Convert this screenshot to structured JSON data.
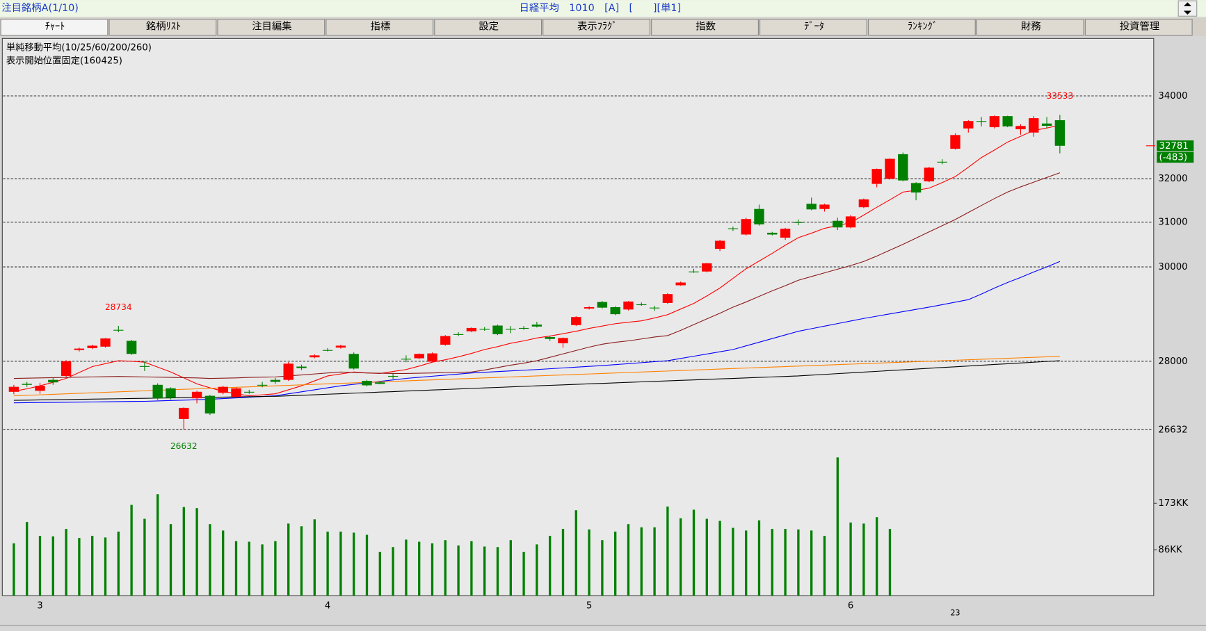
{
  "header": {
    "left": "注目銘柄A(1/10)",
    "center": "日経平均　1010　[A]　[　　][単1]"
  },
  "tabs": [
    "ﾁｬｰﾄ",
    "銘柄ﾘｽﾄ",
    "注目編集",
    "指標",
    "設定",
    "表示ﾌﾗｸﾞ",
    "指数",
    "ﾃﾞｰﾀ",
    "ﾗﾝｷﾝｸﾞ",
    "財務",
    "投資管理"
  ],
  "chart_data": {
    "type": "candlestick",
    "title": "単純移動平均(10/25/60/200/260)",
    "subtitle": "表示開始位置固定(160425)",
    "log": true,
    "grid": true,
    "up_color": "#ff0000",
    "down_color": "#008000",
    "volume_color": "#008000",
    "ylim": [
      26320,
      35420
    ],
    "yticks": [
      34000,
      32000,
      31000,
      30000,
      28000,
      26632
    ],
    "volume_ylim": [
      0,
      265
    ],
    "volume_yticks": [
      {
        "value": 173,
        "label": "173KK"
      },
      {
        "value": 86,
        "label": "86KK"
      }
    ],
    "categories": [
      null,
      null,
      "3",
      null,
      null,
      null,
      null,
      null,
      null,
      null,
      null,
      null,
      null,
      null,
      null,
      null,
      null,
      null,
      null,
      null,
      null,
      null,
      null,
      null,
      "4",
      null,
      null,
      null,
      null,
      null,
      null,
      null,
      null,
      null,
      null,
      null,
      null,
      null,
      null,
      null,
      null,
      null,
      null,
      null,
      "5",
      null,
      null,
      null,
      null,
      null,
      null,
      null,
      null,
      null,
      null,
      null,
      null,
      null,
      null,
      null,
      null,
      null,
      null,
      null,
      "6",
      null,
      null,
      null,
      null,
      null,
      null,
      null,
      null,
      null,
      null,
      null,
      null,
      null,
      null,
      null,
      null
    ],
    "sub_categories": [
      null,
      null,
      null,
      null,
      null,
      null,
      null,
      null,
      null,
      null,
      null,
      null,
      null,
      null,
      null,
      null,
      null,
      null,
      null,
      null,
      null,
      null,
      null,
      null,
      null,
      null,
      null,
      null,
      null,
      null,
      null,
      null,
      null,
      null,
      null,
      null,
      null,
      null,
      null,
      null,
      null,
      null,
      null,
      null,
      null,
      null,
      null,
      null,
      null,
      null,
      null,
      null,
      null,
      null,
      null,
      null,
      null,
      null,
      null,
      null,
      null,
      null,
      null,
      null,
      null,
      null,
      null,
      null,
      null,
      null,
      null,
      null,
      "23",
      null,
      null,
      null,
      null,
      null,
      null,
      null,
      null
    ],
    "open": [
      27380,
      27540,
      27400,
      27620,
      27700,
      28230,
      28270,
      28300,
      28650,
      28420,
      27900,
      27520,
      27450,
      26840,
      27250,
      27300,
      27360,
      27280,
      27380,
      27520,
      27620,
      27620,
      27890,
      28080,
      28230,
      28280,
      28150,
      27600,
      27570,
      27700,
      28050,
      28060,
      27990,
      28340,
      28560,
      28620,
      28670,
      28740,
      28670,
      28690,
      28760,
      28500,
      28370,
      28750,
      29100,
      29240,
      29130,
      29080,
      29190,
      29120,
      29220,
      29600,
      29900,
      29900,
      30400,
      30860,
      30720,
      31300,
      30760,
      30650,
      31000,
      31420,
      31300,
      31030,
      30880,
      31340,
      31880,
      32000,
      32580,
      31900,
      31940,
      32400,
      32710,
      33200,
      33380,
      33230,
      33500,
      33180,
      33100,
      33320,
      33400
    ],
    "high": [
      27520,
      27580,
      27560,
      27660,
      28020,
      28280,
      28340,
      28480,
      28734,
      28440,
      28000,
      27550,
      27470,
      27070,
      27400,
      27320,
      27500,
      27470,
      27420,
      27580,
      27660,
      27980,
      27930,
      28140,
      28270,
      28340,
      28180,
      27620,
      27600,
      27760,
      28120,
      28160,
      28180,
      28540,
      28600,
      28700,
      28710,
      28760,
      28730,
      28730,
      28820,
      28520,
      28490,
      28940,
      29150,
      29260,
      29150,
      29260,
      29230,
      29160,
      29430,
      29680,
      29960,
      30090,
      30600,
      30900,
      31100,
      31400,
      30780,
      30870,
      31060,
      31560,
      31420,
      31100,
      31160,
      31540,
      32240,
      32480,
      32620,
      31920,
      32280,
      32460,
      33080,
      33400,
      33480,
      33520,
      33510,
      33300,
      33500,
      33480,
      33533
    ],
    "low": [
      27330,
      27480,
      27340,
      27520,
      27680,
      28200,
      28250,
      28280,
      28600,
      28130,
      27800,
      27220,
      27230,
      26632,
      27150,
      26920,
      27330,
      27260,
      27340,
      27470,
      27540,
      27600,
      27820,
      28060,
      28200,
      28260,
      27830,
      27490,
      27530,
      27640,
      27980,
      28040,
      27980,
      28320,
      28520,
      28600,
      28630,
      28540,
      28580,
      28650,
      28700,
      28420,
      28280,
      28730,
      29080,
      29100,
      28960,
      29060,
      29160,
      29050,
      29200,
      29590,
      29870,
      29880,
      30350,
      30800,
      30700,
      30920,
      30700,
      30600,
      30930,
      31270,
      31240,
      30820,
      30860,
      31320,
      31800,
      31980,
      31940,
      31500,
      31920,
      32340,
      32690,
      33100,
      33250,
      33200,
      33230,
      33050,
      33000,
      33200,
      32600
    ],
    "close": [
      27480,
      27520,
      27500,
      27570,
      28000,
      28260,
      28320,
      28470,
      28650,
      28150,
      27900,
      27250,
      27260,
      27060,
      27380,
      26950,
      27480,
      27450,
      27380,
      27520,
      27580,
      27950,
      27860,
      28120,
      28230,
      28320,
      27850,
      27510,
      27540,
      27700,
      28050,
      28150,
      28160,
      28520,
      28560,
      28690,
      28670,
      28560,
      28670,
      28690,
      28720,
      28460,
      28480,
      28920,
      29130,
      29120,
      28980,
      29250,
      29190,
      29120,
      29410,
      29660,
      29900,
      30080,
      30580,
      30860,
      31070,
      30950,
      30720,
      30850,
      31000,
      31290,
      31400,
      30880,
      31130,
      31520,
      32230,
      32470,
      31960,
      31680,
      32260,
      32400,
      33040,
      33380,
      33380,
      33500,
      33250,
      33260,
      33450,
      33264,
      32781
    ],
    "volume": [
      98,
      138,
      112,
      111,
      125,
      108,
      112,
      109,
      120,
      170,
      144,
      190,
      134,
      166,
      164,
      134,
      122,
      102,
      101,
      96,
      102,
      135,
      130,
      143,
      120,
      120,
      118,
      114,
      82,
      91,
      105,
      101,
      98,
      104,
      94,
      102,
      92,
      91,
      104,
      82,
      96,
      112,
      125,
      160,
      124,
      104,
      120,
      134,
      128,
      128,
      167,
      145,
      161,
      144,
      140,
      127,
      122,
      141,
      125,
      125,
      124,
      122,
      112,
      259,
      137,
      135,
      147,
      125,
      null,
      null,
      null,
      null,
      null,
      null,
      null,
      null,
      null,
      null,
      null,
      null,
      null
    ],
    "moving_averages": [
      {
        "color": "#ff0000",
        "values": [
          27390,
          27440,
          27500,
          27570,
          27650,
          27770,
          27890,
          27950,
          28010,
          28000,
          27980,
          27880,
          27780,
          27660,
          27540,
          27460,
          27390,
          27340,
          27300,
          27320,
          27340,
          27420,
          27500,
          27600,
          27700,
          27740,
          27780,
          27760,
          27750,
          27790,
          27830,
          27900,
          27980,
          28030,
          28090,
          28160,
          28240,
          28300,
          28370,
          28420,
          28480,
          28520,
          28570,
          28620,
          28680,
          28730,
          28780,
          28810,
          28840,
          28900,
          28970,
          29090,
          29210,
          29370,
          29540,
          29750,
          29960,
          30130,
          30300,
          30480,
          30650,
          30750,
          30860,
          30920,
          30990,
          31160,
          31340,
          31510,
          31690,
          31730,
          31780,
          31910,
          32050,
          32270,
          32500,
          32680,
          32870,
          33010,
          33150,
          33210,
          33280
        ]
      },
      {
        "color": "#8b1a1a",
        "values": [
          27650,
          27655,
          27660,
          27665,
          27670,
          27675,
          27680,
          27685,
          27690,
          27685,
          27680,
          27675,
          27670,
          27665,
          27660,
          27650,
          27655,
          27660,
          27670,
          27675,
          27680,
          27700,
          27720,
          27740,
          27760,
          27780,
          27770,
          27760,
          27755,
          27750,
          27750,
          27755,
          27760,
          27770,
          27775,
          27780,
          27820,
          27870,
          27920,
          27960,
          28010,
          28080,
          28150,
          28220,
          28290,
          28350,
          28390,
          28420,
          28460,
          28500,
          28530,
          28640,
          28760,
          28880,
          29000,
          29130,
          29240,
          29360,
          29480,
          29590,
          29710,
          29790,
          29870,
          29950,
          30030,
          30120,
          30240,
          30370,
          30500,
          30640,
          30780,
          30920,
          31060,
          31220,
          31380,
          31540,
          31690,
          31810,
          31920,
          32030,
          32140
        ]
      },
      {
        "color": "#0000ff",
        "values": [
          27160,
          27163,
          27166,
          27169,
          27172,
          27175,
          27178,
          27181,
          27184,
          27187,
          27190,
          27198,
          27206,
          27214,
          27222,
          27230,
          27244,
          27258,
          27272,
          27286,
          27300,
          27340,
          27380,
          27420,
          27460,
          27500,
          27530,
          27560,
          27590,
          27620,
          27650,
          27672,
          27694,
          27716,
          27738,
          27760,
          27774,
          27788,
          27802,
          27816,
          27830,
          27846,
          27862,
          27878,
          27894,
          27910,
          27930,
          27950,
          27970,
          27990,
          28010,
          28056,
          28102,
          28148,
          28194,
          28240,
          28316,
          28392,
          28468,
          28544,
          28620,
          28674,
          28728,
          28782,
          28836,
          28890,
          28938,
          28986,
          29034,
          29082,
          29130,
          29183,
          29237,
          29290,
          29410,
          29540,
          29660,
          29770,
          29890,
          30000,
          30120
        ]
      },
      {
        "color": "#ff8000",
        "values": [
          27300,
          27310,
          27320,
          27330,
          27340,
          27350,
          27360,
          27370,
          27380,
          27390,
          27400,
          27410,
          27420,
          27430,
          27440,
          27450,
          27460,
          27470,
          27480,
          27490,
          27500,
          27510,
          27520,
          27530,
          27540,
          27550,
          27560,
          27570,
          27580,
          27590,
          27600,
          27610,
          27620,
          27630,
          27640,
          27650,
          27660,
          27670,
          27680,
          27690,
          27700,
          27710,
          27720,
          27730,
          27740,
          27750,
          27760,
          27770,
          27780,
          27790,
          27800,
          27810,
          27820,
          27830,
          27840,
          27850,
          27860,
          27870,
          27880,
          27890,
          27900,
          27910,
          27920,
          27930,
          27940,
          27950,
          27960,
          27970,
          27980,
          27990,
          28000,
          28010,
          28020,
          28030,
          28040,
          28050,
          28060,
          28070,
          28080,
          28090,
          28100
        ]
      },
      {
        "color": "#000000",
        "values": [
          27210,
          27214,
          27218,
          27222,
          27226,
          27230,
          27234,
          27238,
          27242,
          27246,
          27250,
          27254,
          27258,
          27262,
          27266,
          27270,
          27274,
          27278,
          27282,
          27286,
          27290,
          27300,
          27311,
          27321,
          27332,
          27342,
          27353,
          27363,
          27374,
          27384,
          27395,
          27405,
          27416,
          27426,
          27437,
          27447,
          27458,
          27468,
          27479,
          27489,
          27500,
          27510,
          27520,
          27530,
          27540,
          27550,
          27560,
          27570,
          27580,
          27590,
          27600,
          27610,
          27620,
          27630,
          27640,
          27650,
          27660,
          27670,
          27680,
          27690,
          27700,
          27716,
          27731,
          27747,
          27762,
          27778,
          27793,
          27809,
          27824,
          27840,
          27855,
          27871,
          27886,
          27902,
          27917,
          27933,
          27948,
          27964,
          27979,
          27995,
          28010
        ]
      }
    ],
    "annotations": [
      28734,
      26632,
      33533
    ],
    "change": {
      "value": -483,
      "label": "(-483)"
    }
  }
}
